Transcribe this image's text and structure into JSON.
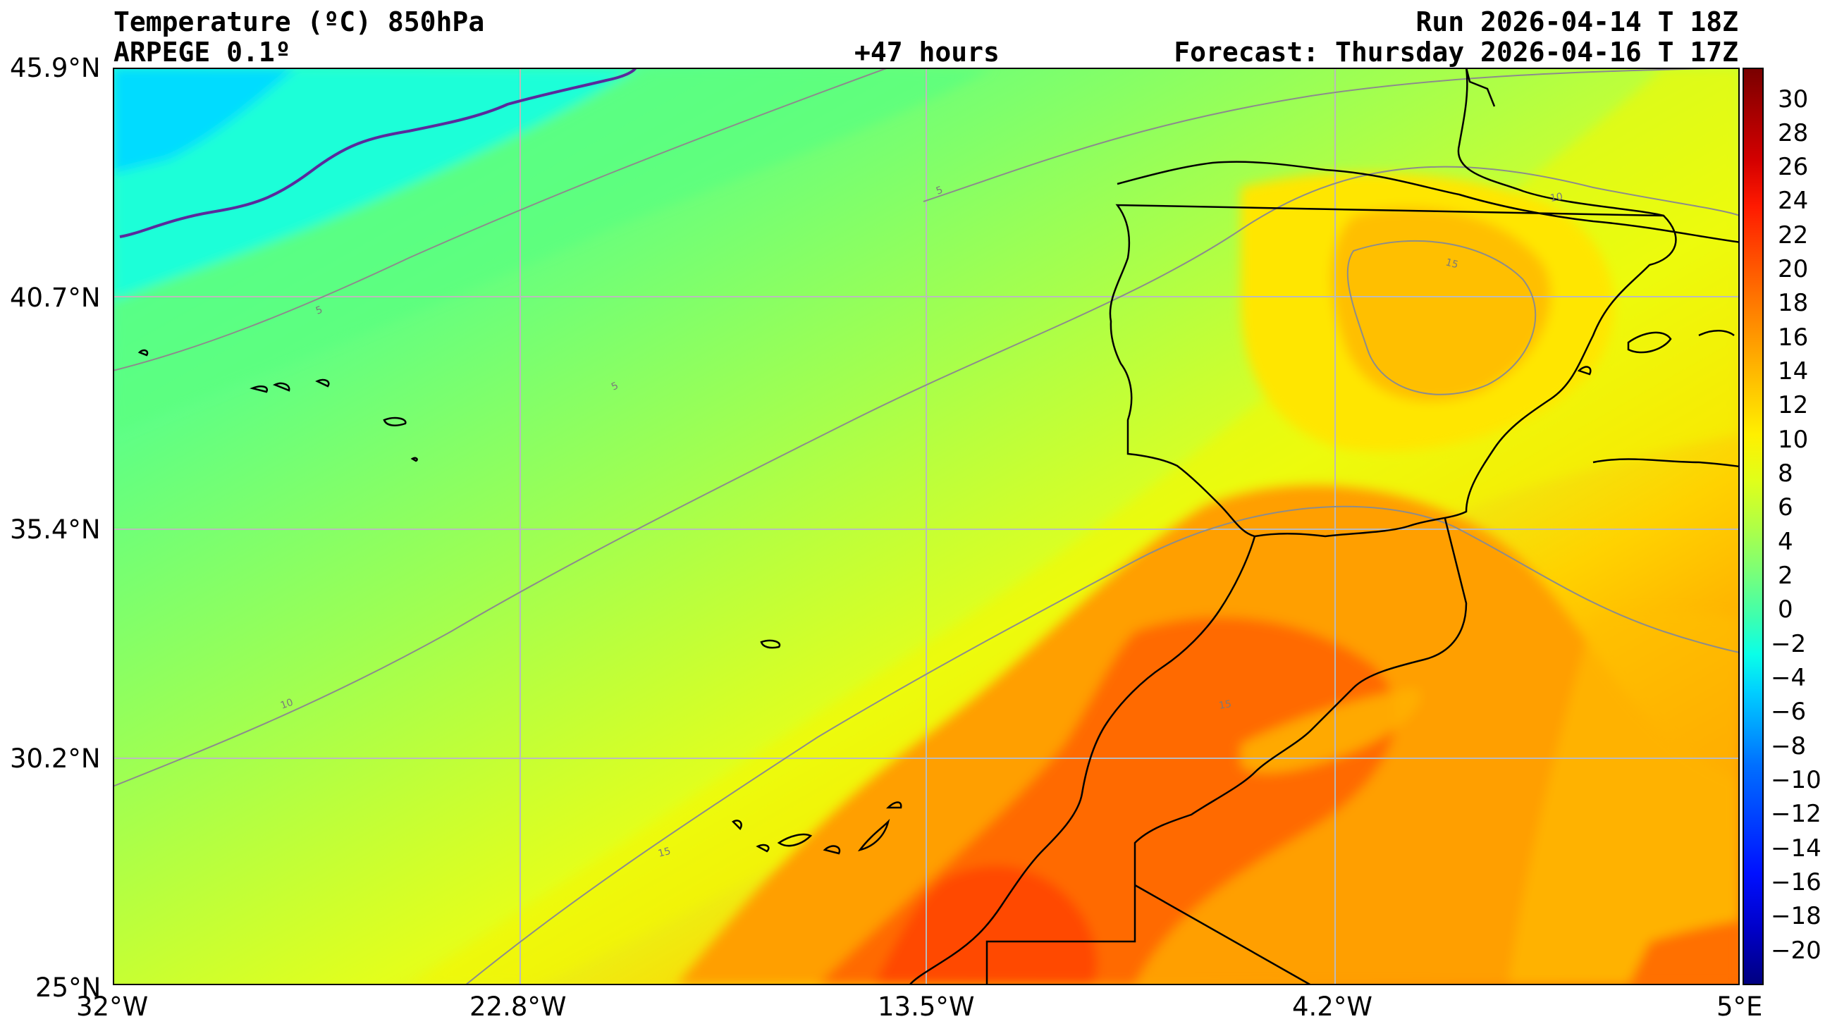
{
  "header": {
    "title": "Temperature (ºC) 850hPa",
    "model": "ARPEGE 0.1º",
    "lead_time": "+47 hours",
    "run": "Run 2026-04-14 T 18Z",
    "forecast": "Forecast: Thursday 2026-04-16 T 17Z"
  },
  "axes": {
    "lat_ticks": [
      "45.9°N",
      "40.7°N",
      "35.4°N",
      "30.2°N",
      "25°N"
    ],
    "lon_ticks": [
      "32°W",
      "22.8°W",
      "13.5°W",
      "4.2°W",
      "5°E"
    ]
  },
  "colorbar": {
    "ticks": [
      "30",
      "28",
      "26",
      "24",
      "22",
      "20",
      "18",
      "16",
      "14",
      "12",
      "10",
      "8",
      "6",
      "4",
      "2",
      "0",
      "−2",
      "−4",
      "−6",
      "−8",
      "−10",
      "−12",
      "−14",
      "−16",
      "−18",
      "−20"
    ]
  },
  "contour_labels": [
    "5",
    "10",
    "15"
  ],
  "map": {
    "extent": {
      "lon_min": -32,
      "lon_max": 5,
      "lat_min": 25,
      "lat_max": 45.9
    },
    "colors": {
      "zero_isotherm": "#5a2a9c",
      "coast": "#000000",
      "grid": "#bbbbbb",
      "contour": "#8c8c8c"
    }
  }
}
